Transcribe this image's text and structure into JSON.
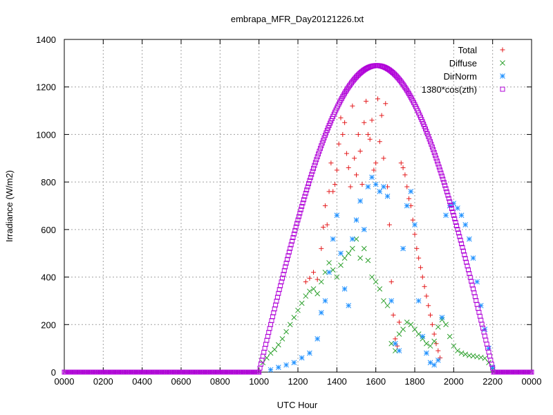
{
  "chart_data": {
    "type": "scatter",
    "title": "embrapa_MFR_Day20121226.txt",
    "xlabel": "UTC Hour",
    "ylabel": "Irradiance (W/m2)",
    "xlim": [
      0,
      2400
    ],
    "ylim": [
      0,
      1400
    ],
    "x_ticks": [
      "0000",
      "0200",
      "0400",
      "0600",
      "0800",
      "1000",
      "1200",
      "1400",
      "1600",
      "1800",
      "2000",
      "2200",
      "0000"
    ],
    "y_ticks": [
      "0",
      "200",
      "400",
      "600",
      "800",
      "1000",
      "1200",
      "1400"
    ],
    "grid": true,
    "legend_position": "top-right",
    "series": [
      {
        "name": "Total",
        "color": "#e41a1c",
        "marker": "plus",
        "points": [
          [
            1240,
            380
          ],
          [
            1260,
            395
          ],
          [
            1280,
            420
          ],
          [
            1300,
            390
          ],
          [
            1320,
            520
          ],
          [
            1330,
            610
          ],
          [
            1340,
            700
          ],
          [
            1350,
            620
          ],
          [
            1360,
            760
          ],
          [
            1370,
            880
          ],
          [
            1380,
            760
          ],
          [
            1390,
            790
          ],
          [
            1400,
            850
          ],
          [
            1410,
            960
          ],
          [
            1420,
            1070
          ],
          [
            1430,
            1000
          ],
          [
            1440,
            1050
          ],
          [
            1450,
            920
          ],
          [
            1460,
            860
          ],
          [
            1470,
            780
          ],
          [
            1480,
            1120
          ],
          [
            1490,
            900
          ],
          [
            1500,
            830
          ],
          [
            1510,
            1000
          ],
          [
            1520,
            930
          ],
          [
            1530,
            790
          ],
          [
            1540,
            1050
          ],
          [
            1550,
            1140
          ],
          [
            1560,
            1000
          ],
          [
            1570,
            980
          ],
          [
            1580,
            1060
          ],
          [
            1590,
            850
          ],
          [
            1600,
            880
          ],
          [
            1610,
            1150
          ],
          [
            1620,
            970
          ],
          [
            1630,
            1080
          ],
          [
            1640,
            900
          ],
          [
            1650,
            1130
          ],
          [
            1660,
            780
          ],
          [
            1670,
            620
          ],
          [
            1680,
            380
          ],
          [
            1690,
            240
          ],
          [
            1700,
            140
          ],
          [
            1710,
            110
          ],
          [
            1720,
            210
          ],
          [
            1730,
            880
          ],
          [
            1740,
            860
          ],
          [
            1750,
            830
          ],
          [
            1760,
            780
          ],
          [
            1770,
            730
          ],
          [
            1780,
            700
          ],
          [
            1790,
            640
          ],
          [
            1800,
            580
          ],
          [
            1810,
            520
          ],
          [
            1820,
            480
          ],
          [
            1830,
            440
          ],
          [
            1840,
            400
          ],
          [
            1850,
            360
          ],
          [
            1860,
            320
          ],
          [
            1870,
            280
          ],
          [
            1880,
            240
          ],
          [
            1890,
            200
          ],
          [
            1900,
            160
          ],
          [
            1910,
            120
          ],
          [
            1920,
            90
          ],
          [
            1930,
            60
          ]
        ]
      },
      {
        "name": "Diffuse",
        "color": "#2ca02c",
        "marker": "cross",
        "points": [
          [
            1020,
            40
          ],
          [
            1040,
            60
          ],
          [
            1060,
            80
          ],
          [
            1080,
            95
          ],
          [
            1100,
            115
          ],
          [
            1120,
            140
          ],
          [
            1140,
            170
          ],
          [
            1160,
            200
          ],
          [
            1180,
            230
          ],
          [
            1200,
            260
          ],
          [
            1220,
            290
          ],
          [
            1240,
            320
          ],
          [
            1260,
            340
          ],
          [
            1280,
            350
          ],
          [
            1300,
            330
          ],
          [
            1320,
            380
          ],
          [
            1340,
            420
          ],
          [
            1360,
            460
          ],
          [
            1380,
            430
          ],
          [
            1400,
            400
          ],
          [
            1420,
            450
          ],
          [
            1440,
            480
          ],
          [
            1460,
            500
          ],
          [
            1480,
            520
          ],
          [
            1500,
            560
          ],
          [
            1520,
            480
          ],
          [
            1540,
            520
          ],
          [
            1560,
            470
          ],
          [
            1580,
            400
          ],
          [
            1600,
            380
          ],
          [
            1620,
            350
          ],
          [
            1640,
            300
          ],
          [
            1660,
            280
          ],
          [
            1680,
            120
          ],
          [
            1700,
            90
          ],
          [
            1720,
            160
          ],
          [
            1740,
            180
          ],
          [
            1760,
            210
          ],
          [
            1780,
            200
          ],
          [
            1800,
            180
          ],
          [
            1820,
            160
          ],
          [
            1840,
            140
          ],
          [
            1860,
            120
          ],
          [
            1880,
            110
          ],
          [
            1900,
            130
          ],
          [
            1920,
            190
          ],
          [
            1940,
            220
          ],
          [
            1960,
            200
          ],
          [
            1980,
            150
          ],
          [
            2000,
            110
          ],
          [
            2020,
            90
          ],
          [
            2040,
            80
          ],
          [
            2060,
            75
          ],
          [
            2080,
            70
          ],
          [
            2100,
            68
          ],
          [
            2120,
            65
          ],
          [
            2140,
            62
          ],
          [
            2160,
            58
          ],
          [
            2180,
            40
          ],
          [
            2200,
            10
          ]
        ]
      },
      {
        "name": "DirNorm",
        "color": "#1e90ff",
        "marker": "star",
        "points": [
          [
            1060,
            10
          ],
          [
            1100,
            20
          ],
          [
            1140,
            30
          ],
          [
            1180,
            40
          ],
          [
            1220,
            60
          ],
          [
            1260,
            80
          ],
          [
            1300,
            140
          ],
          [
            1320,
            250
          ],
          [
            1340,
            300
          ],
          [
            1360,
            420
          ],
          [
            1380,
            560
          ],
          [
            1400,
            660
          ],
          [
            1420,
            500
          ],
          [
            1440,
            350
          ],
          [
            1460,
            280
          ],
          [
            1480,
            560
          ],
          [
            1500,
            640
          ],
          [
            1520,
            720
          ],
          [
            1540,
            600
          ],
          [
            1560,
            780
          ],
          [
            1580,
            820
          ],
          [
            1600,
            790
          ],
          [
            1620,
            760
          ],
          [
            1640,
            780
          ],
          [
            1660,
            740
          ],
          [
            1680,
            300
          ],
          [
            1700,
            120
          ],
          [
            1720,
            90
          ],
          [
            1740,
            520
          ],
          [
            1760,
            700
          ],
          [
            1780,
            760
          ],
          [
            1800,
            620
          ],
          [
            1820,
            300
          ],
          [
            1840,
            150
          ],
          [
            1860,
            80
          ],
          [
            1880,
            40
          ],
          [
            1900,
            30
          ],
          [
            1920,
            50
          ],
          [
            1940,
            230
          ],
          [
            1960,
            660
          ],
          [
            1980,
            700
          ],
          [
            2000,
            710
          ],
          [
            2020,
            690
          ],
          [
            2040,
            660
          ],
          [
            2060,
            620
          ],
          [
            2080,
            560
          ],
          [
            2100,
            480
          ],
          [
            2120,
            380
          ],
          [
            2140,
            280
          ],
          [
            2160,
            180
          ],
          [
            2180,
            100
          ],
          [
            2200,
            20
          ]
        ]
      },
      {
        "name": "1380*cos(zth)",
        "color": "#b000d8",
        "marker": "square",
        "curve": {
          "sunrise": 1000,
          "sunset": 2205,
          "peak_x": 1605,
          "peak_y": 1290
        }
      }
    ]
  }
}
